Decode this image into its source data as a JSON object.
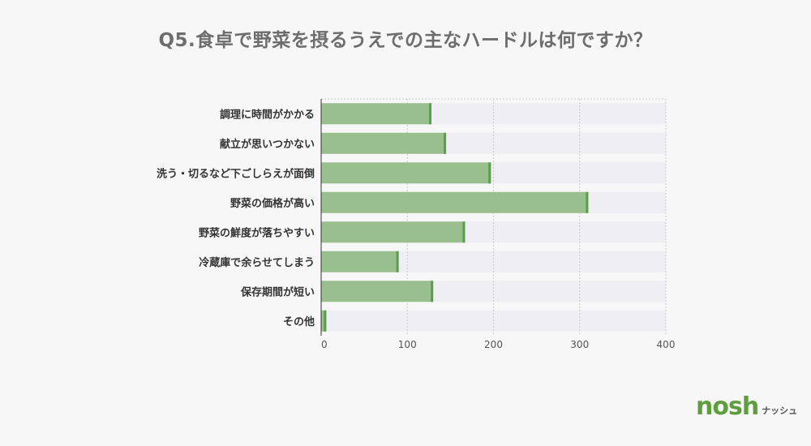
{
  "title": "Q5.食卓で野菜を摂るうえでの主なハードルは何ですか？",
  "chart_data": {
    "type": "bar",
    "orientation": "horizontal",
    "categories": [
      "調理に時間がかかる",
      "献立が思いつかない",
      "洗う・切るなど下ごしらえが面倒",
      "野菜の価格が高い",
      "野菜の鮮度が落ちやすい",
      "冷蔵庫で余らせてしまう",
      "保存期間が短い",
      "その他"
    ],
    "values": [
      128,
      145,
      197,
      310,
      167,
      90,
      130,
      6
    ],
    "xlim": [
      0,
      400
    ],
    "xticks": [
      0,
      100,
      200,
      300,
      400
    ],
    "grid": true,
    "colors": {
      "bar": "#9abf8f",
      "bar_end": "#5a9e49",
      "track": "#eeeef3",
      "grid": "#c8c8c8"
    }
  },
  "logo": {
    "mark": "nosh",
    "sub": "ナッシュ"
  }
}
